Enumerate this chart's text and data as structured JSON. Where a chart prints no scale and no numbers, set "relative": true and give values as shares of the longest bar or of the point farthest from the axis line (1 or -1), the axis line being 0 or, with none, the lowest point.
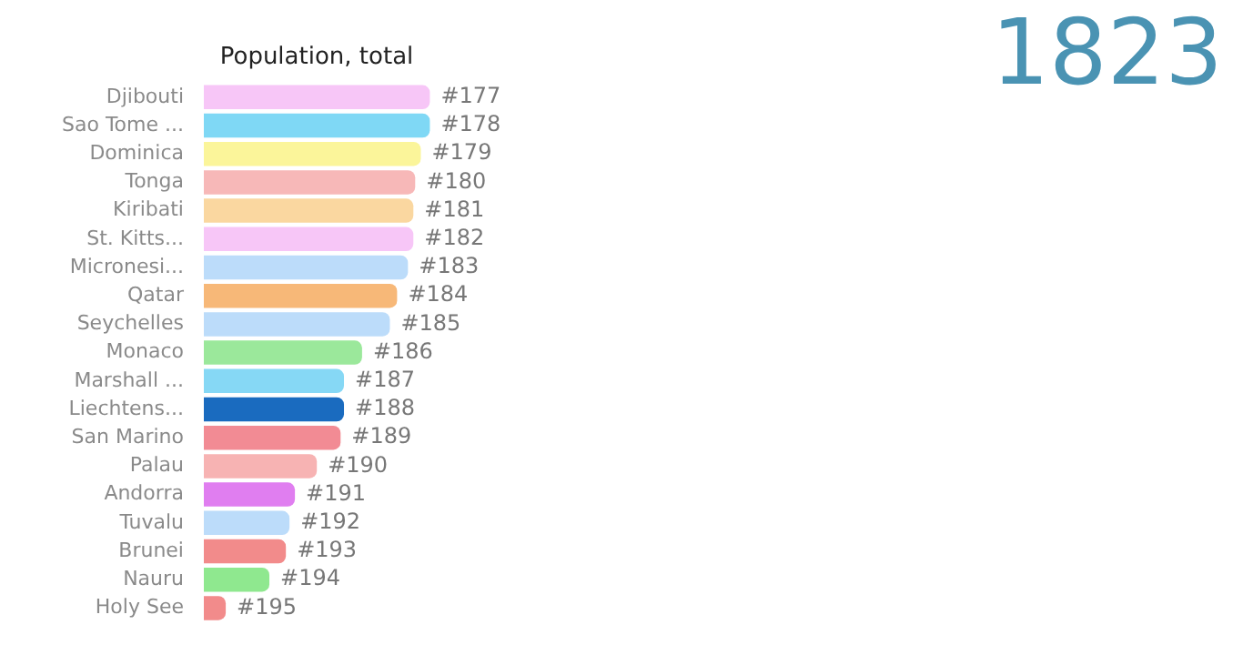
{
  "chart_data": {
    "type": "bar",
    "orientation": "horizontal",
    "relative": true,
    "title": "Population, total",
    "annotations": [
      "1823",
      {
        "text": "#177",
        "x": 1,
        "y": "Djibouti"
      },
      {
        "text": "#178",
        "x": 1,
        "y": "Sao Tome ..."
      },
      {
        "text": "#179",
        "x": 0.96,
        "y": "Dominica"
      },
      {
        "text": "#180",
        "x": 0.935,
        "y": "Tonga"
      },
      {
        "text": "#181",
        "x": 0.927,
        "y": "Kiribati"
      },
      {
        "text": "#182",
        "x": 0.927,
        "y": "St. Kitts..."
      },
      {
        "text": "#183",
        "x": 0.903,
        "y": "Micronesi..."
      },
      {
        "text": "#184",
        "x": 0.855,
        "y": "Qatar"
      },
      {
        "text": "#185",
        "x": 0.823,
        "y": "Seychelles"
      },
      {
        "text": "#186",
        "x": 0.7,
        "y": "Monaco"
      },
      {
        "text": "#187",
        "x": 0.62,
        "y": "Marshall ..."
      },
      {
        "text": "#188",
        "x": 0.62,
        "y": "Liechtens..."
      },
      {
        "text": "#189",
        "x": 0.605,
        "y": "San Marino"
      },
      {
        "text": "#190",
        "x": 0.5,
        "y": "Palau"
      },
      {
        "text": "#191",
        "x": 0.403,
        "y": "Andorra"
      },
      {
        "text": "#192",
        "x": 0.379,
        "y": "Tuvalu"
      },
      {
        "text": "#193",
        "x": 0.363,
        "y": "Brunei"
      },
      {
        "text": "#194",
        "x": 0.29,
        "y": "Nauru"
      },
      {
        "text": "#195",
        "x": 0.097,
        "y": "Holy See"
      }
    ],
    "categories": [
      "Djibouti",
      "Sao Tome ...",
      "Dominica",
      "Tonga",
      "Kiribati",
      "St. Kitts...",
      "Micronesi...",
      "Qatar",
      "Seychelles",
      "Monaco",
      "Marshall ...",
      "Liechtens...",
      "San Marino",
      "Palau",
      "Andorra",
      "Tuvalu",
      "Brunei",
      "Nauru",
      "Holy See"
    ],
    "values": [
      1,
      1,
      0.96,
      0.935,
      0.927,
      0.927,
      0.903,
      0.855,
      0.823,
      0.7,
      0.62,
      0.62,
      0.605,
      0.5,
      0.403,
      0.379,
      0.363,
      0.29,
      0.097
    ],
    "colors": [
      "#f7c6f7",
      "#7fd8f5",
      "#fbf59a",
      "#f7b8b8",
      "#fad7a0",
      "#f7c6f7",
      "#bcdcfa",
      "#f7b878",
      "#bcdcfa",
      "#9be89b",
      "#86d8f5",
      "#1a6bbf",
      "#f28b94",
      "#f7b3b3",
      "#e07ef0",
      "#bcdcfa",
      "#f28b8b",
      "#8fe88f",
      "#f28b8b"
    ],
    "grid": false,
    "legend": false
  }
}
